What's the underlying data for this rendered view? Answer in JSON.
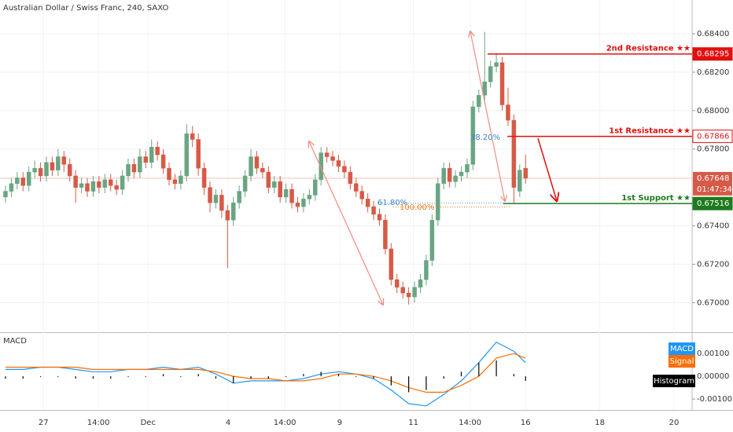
{
  "chart_data": [
    {
      "type": "candlestick",
      "title": "Australian Dollar / Swiss Franc, 240, SAXO",
      "xlim": [
        -0.94,
        117.5
      ],
      "xticks": [
        {
          "value": 6.5,
          "label": "27"
        },
        {
          "value": 15.9,
          "label": "14:00"
        },
        {
          "value": 24.4,
          "label": "Dec"
        },
        {
          "value": 38.1,
          "label": "4"
        },
        {
          "value": 47.8,
          "label": "14:00"
        },
        {
          "value": 57.2,
          "label": "9"
        },
        {
          "value": 69.8,
          "label": "11"
        },
        {
          "value": 79.5,
          "label": "14:00"
        },
        {
          "value": 89,
          "label": "16"
        },
        {
          "value": 101.7,
          "label": "18"
        },
        {
          "value": 114.4,
          "label": "20"
        }
      ],
      "ylim": [
        0.6685,
        0.68576
      ],
      "yticks": [
        {
          "value": 0.684,
          "label": "0.68400"
        },
        {
          "value": 0.682,
          "label": "0.68200"
        },
        {
          "value": 0.68,
          "label": "0.68000"
        },
        {
          "value": 0.678,
          "label": "0.67800"
        },
        {
          "value": 0.674,
          "label": "0.67400"
        },
        {
          "value": 0.672,
          "label": "0.67200"
        },
        {
          "value": 0.67,
          "label": "0.67000"
        }
      ],
      "up_color": "#6aa583",
      "down_color": "#d65a48",
      "candles": [
        [
          0.6755,
          0.6761,
          0.6752,
          0.6758
        ],
        [
          0.6758,
          0.6765,
          0.6755,
          0.6762
        ],
        [
          0.6762,
          0.6768,
          0.6759,
          0.6765
        ],
        [
          0.6765,
          0.6768,
          0.6758,
          0.6761
        ],
        [
          0.6761,
          0.6771,
          0.6758,
          0.6768
        ],
        [
          0.6768,
          0.6774,
          0.6765,
          0.677
        ],
        [
          0.677,
          0.6773,
          0.6763,
          0.6766
        ],
        [
          0.6766,
          0.6776,
          0.6763,
          0.6773
        ],
        [
          0.6773,
          0.6776,
          0.6766,
          0.6769
        ],
        [
          0.6769,
          0.678,
          0.6766,
          0.6776
        ],
        [
          0.6776,
          0.6779,
          0.6768,
          0.6772
        ],
        [
          0.6772,
          0.6775,
          0.6763,
          0.6766
        ],
        [
          0.6766,
          0.6769,
          0.6752,
          0.676
        ],
        [
          0.676,
          0.6765,
          0.6757,
          0.6762
        ],
        [
          0.6762,
          0.6765,
          0.6755,
          0.6758
        ],
        [
          0.6758,
          0.6766,
          0.6755,
          0.6763
        ],
        [
          0.6763,
          0.6766,
          0.6757,
          0.676
        ],
        [
          0.676,
          0.6767,
          0.6757,
          0.6764
        ],
        [
          0.6764,
          0.6767,
          0.6758,
          0.6761
        ],
        [
          0.6761,
          0.6764,
          0.6756,
          0.6759
        ],
        [
          0.6759,
          0.6769,
          0.6756,
          0.6766
        ],
        [
          0.6766,
          0.6775,
          0.6763,
          0.6772
        ],
        [
          0.6772,
          0.6775,
          0.6765,
          0.6768
        ],
        [
          0.6768,
          0.678,
          0.6765,
          0.6776
        ],
        [
          0.6776,
          0.6779,
          0.677,
          0.6773
        ],
        [
          0.6773,
          0.6785,
          0.677,
          0.6781
        ],
        [
          0.6781,
          0.6784,
          0.6774,
          0.6777
        ],
        [
          0.6777,
          0.678,
          0.6767,
          0.677
        ],
        [
          0.677,
          0.6773,
          0.6761,
          0.6764
        ],
        [
          0.6764,
          0.6767,
          0.6759,
          0.6762
        ],
        [
          0.6762,
          0.6769,
          0.6759,
          0.6766
        ],
        [
          0.6766,
          0.6793,
          0.6763,
          0.6788
        ],
        [
          0.6788,
          0.6792,
          0.6781,
          0.6785
        ],
        [
          0.6785,
          0.6788,
          0.6766,
          0.677
        ],
        [
          0.677,
          0.6773,
          0.6756,
          0.676
        ],
        [
          0.676,
          0.6763,
          0.6747,
          0.6752
        ],
        [
          0.6752,
          0.6759,
          0.6749,
          0.6756
        ],
        [
          0.6756,
          0.6759,
          0.6744,
          0.6748
        ],
        [
          0.6748,
          0.6751,
          0.6718,
          0.6743
        ],
        [
          0.6743,
          0.6755,
          0.674,
          0.6752
        ],
        [
          0.6752,
          0.6761,
          0.6749,
          0.6758
        ],
        [
          0.6758,
          0.6769,
          0.6755,
          0.6766
        ],
        [
          0.6766,
          0.678,
          0.6763,
          0.6776
        ],
        [
          0.6776,
          0.6779,
          0.6767,
          0.677
        ],
        [
          0.677,
          0.6773,
          0.6765,
          0.6768
        ],
        [
          0.6768,
          0.6771,
          0.6757,
          0.676
        ],
        [
          0.676,
          0.6766,
          0.6757,
          0.6763
        ],
        [
          0.6763,
          0.6766,
          0.6752,
          0.6755
        ],
        [
          0.6755,
          0.6762,
          0.6752,
          0.6759
        ],
        [
          0.6759,
          0.6762,
          0.6749,
          0.6752
        ],
        [
          0.6752,
          0.6755,
          0.6747,
          0.675
        ],
        [
          0.675,
          0.6757,
          0.6747,
          0.6754
        ],
        [
          0.6754,
          0.6759,
          0.6751,
          0.6756
        ],
        [
          0.6756,
          0.6767,
          0.6753,
          0.6764
        ],
        [
          0.6764,
          0.6781,
          0.6761,
          0.6778
        ],
        [
          0.6778,
          0.6781,
          0.6773,
          0.6776
        ],
        [
          0.6776,
          0.6779,
          0.6771,
          0.6774
        ],
        [
          0.6774,
          0.6777,
          0.6768,
          0.6771
        ],
        [
          0.6771,
          0.6774,
          0.6765,
          0.6768
        ],
        [
          0.6768,
          0.6771,
          0.6759,
          0.6762
        ],
        [
          0.6762,
          0.6765,
          0.6755,
          0.6758
        ],
        [
          0.6758,
          0.6761,
          0.6751,
          0.6754
        ],
        [
          0.6754,
          0.6757,
          0.6747,
          0.675
        ],
        [
          0.675,
          0.6753,
          0.6743,
          0.6746
        ],
        [
          0.6746,
          0.6749,
          0.674,
          0.6743
        ],
        [
          0.6743,
          0.6746,
          0.6725,
          0.6728
        ],
        [
          0.6728,
          0.6731,
          0.6709,
          0.6712
        ],
        [
          0.6712,
          0.6715,
          0.6705,
          0.6708
        ],
        [
          0.6708,
          0.6711,
          0.6702,
          0.6705
        ],
        [
          0.6705,
          0.6708,
          0.6699,
          0.6703
        ],
        [
          0.6703,
          0.6711,
          0.67,
          0.6708
        ],
        [
          0.6708,
          0.6715,
          0.6705,
          0.6712
        ],
        [
          0.6712,
          0.6725,
          0.6709,
          0.6722
        ],
        [
          0.6722,
          0.6746,
          0.6719,
          0.6743
        ],
        [
          0.6743,
          0.6765,
          0.674,
          0.6762
        ],
        [
          0.6762,
          0.6773,
          0.6759,
          0.677
        ],
        [
          0.677,
          0.6773,
          0.676,
          0.6763
        ],
        [
          0.6763,
          0.6769,
          0.676,
          0.6766
        ],
        [
          0.6766,
          0.6771,
          0.6763,
          0.6768
        ],
        [
          0.6768,
          0.6775,
          0.6765,
          0.6772
        ],
        [
          0.6772,
          0.6805,
          0.6769,
          0.6802
        ],
        [
          0.6802,
          0.6811,
          0.6799,
          0.6808
        ],
        [
          0.6808,
          0.6841,
          0.6805,
          0.6815
        ],
        [
          0.6815,
          0.6826,
          0.6812,
          0.6823
        ],
        [
          0.6823,
          0.683,
          0.682,
          0.6825
        ],
        [
          0.6825,
          0.6828,
          0.68,
          0.6803
        ],
        [
          0.6803,
          0.6812,
          0.6792,
          0.6795
        ],
        [
          0.6795,
          0.6798,
          0.6752,
          0.676
        ],
        [
          0.6758,
          0.6772,
          0.6755,
          0.6769
        ],
        [
          0.677,
          0.6777,
          0.6762,
          0.67648
        ]
      ],
      "levels": [
        {
          "name": "2nd Resistance ★★",
          "value": 0.68295,
          "color": "#e01010"
        },
        {
          "name": "1st Resistance ★★",
          "value": 0.67866,
          "color": "#e01010"
        },
        {
          "name": "1st Support ★★",
          "value": 0.67516,
          "color": "#1e7a1e"
        }
      ],
      "last_price": 0.67648,
      "countdown": "01:47:34",
      "annotations": [
        "61.80%",
        "100.00%",
        "38.20%"
      ]
    },
    {
      "type": "macd",
      "title": "MACD",
      "xlim": [
        -0.94,
        117.5
      ],
      "ylim": [
        -0.00148,
        0.0019
      ],
      "yticks": [
        {
          "value": 0.001,
          "label": "0.00100"
        },
        {
          "value": 0,
          "label": "0.00000"
        },
        {
          "value": -0.001,
          "label": "-0.00100"
        }
      ],
      "x": [
        0,
        3,
        6,
        9,
        12,
        15,
        18,
        21,
        24,
        27,
        30,
        33,
        36,
        39,
        42,
        45,
        48,
        51,
        54,
        57,
        60,
        63,
        66,
        69,
        72,
        75,
        78,
        81,
        84,
        87,
        89
      ],
      "series": [
        {
          "name": "MACD",
          "color": "#2196f3",
          "values": [
            0.0003,
            0.0003,
            0.0004,
            0.0004,
            0.0003,
            0.0002,
            0.0002,
            0.0003,
            0.0003,
            0.0004,
            0.0003,
            0.0004,
            0.0001,
            -0.0003,
            -0.0002,
            -0.0002,
            -0.0002,
            -0.0001,
            0.0001,
            0.0002,
            0.0001,
            -0.0001,
            -0.0006,
            -0.0012,
            -0.0013,
            -0.0008,
            -0.0002,
            0.0006,
            0.0015,
            0.0011,
            0.0006
          ]
        },
        {
          "name": "Signal",
          "color": "#ff6d00",
          "values": [
            0.0004,
            0.0004,
            0.0004,
            0.0004,
            0.0004,
            0.0003,
            0.0003,
            0.0003,
            0.0003,
            0.0003,
            0.0003,
            0.0003,
            0.0002,
            0,
            -0.0001,
            -0.0001,
            -0.0002,
            -0.0002,
            -0.0001,
            0.0001,
            0.0001,
            0,
            -0.0002,
            -0.0005,
            -0.0007,
            -0.0007,
            -0.0004,
            0,
            0.0008,
            0.001,
            0.0008
          ]
        },
        {
          "name": "Histogram",
          "color": "#000000",
          "values": [
            -0.0001,
            -0.0001,
            0,
            0,
            -0.0001,
            -0.0001,
            -0.0001,
            0,
            0,
            0.0001,
            0,
            0.0001,
            -0.0001,
            -0.0003,
            -0.0001,
            -0.0001,
            0,
            0.0001,
            0.0002,
            0.0001,
            0,
            -0.0001,
            -0.0004,
            -0.0007,
            -0.0006,
            -0.0001,
            0.0002,
            0.0006,
            0.0007,
            0.0001,
            -0.0002
          ]
        }
      ]
    }
  ]
}
